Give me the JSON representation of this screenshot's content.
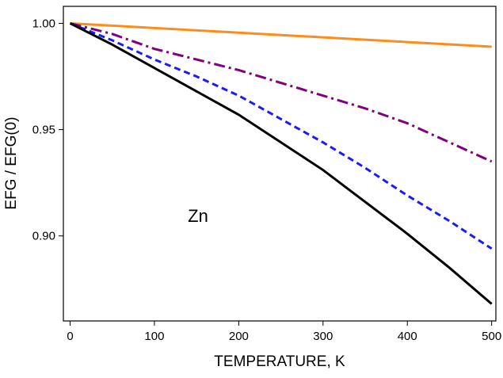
{
  "chart_data": {
    "type": "line",
    "x": [
      0,
      50,
      100,
      150,
      200,
      250,
      300,
      350,
      400,
      450,
      500
    ],
    "series": [
      {
        "color": "#ff8c1a",
        "style": "solid",
        "values": [
          1.0,
          0.9989,
          0.9978,
          0.9967,
          0.9956,
          0.9945,
          0.9934,
          0.9923,
          0.9912,
          0.9901,
          0.989
        ]
      },
      {
        "color": "#800080",
        "style": "dashdot",
        "values": [
          1.0,
          0.995,
          0.988,
          0.983,
          0.978,
          0.972,
          0.966,
          0.96,
          0.953,
          0.944,
          0.935
        ]
      },
      {
        "color": "#1a1aff",
        "style": "dash",
        "values": [
          1.0,
          0.992,
          0.983,
          0.975,
          0.966,
          0.955,
          0.944,
          0.932,
          0.919,
          0.907,
          0.894
        ]
      },
      {
        "color": "#000000",
        "style": "solid",
        "values": [
          1.0,
          0.99,
          0.979,
          0.968,
          0.957,
          0.944,
          0.931,
          0.916,
          0.901,
          0.885,
          0.868
        ]
      }
    ],
    "xlim": [
      -8,
      505
    ],
    "xticks": [
      0,
      100,
      200,
      300,
      400,
      500
    ],
    "ylim": [
      0.86,
      1.008
    ],
    "yticks": [
      {
        "value": 0.9,
        "label": "0.90"
      },
      {
        "value": 0.95,
        "label": "0.95"
      },
      {
        "value": 1.0,
        "label": "1.00"
      }
    ],
    "xlabel": "TEMPERATURE, K",
    "ylabel": "EFG / EFG(0)",
    "annotation": "Zn"
  }
}
